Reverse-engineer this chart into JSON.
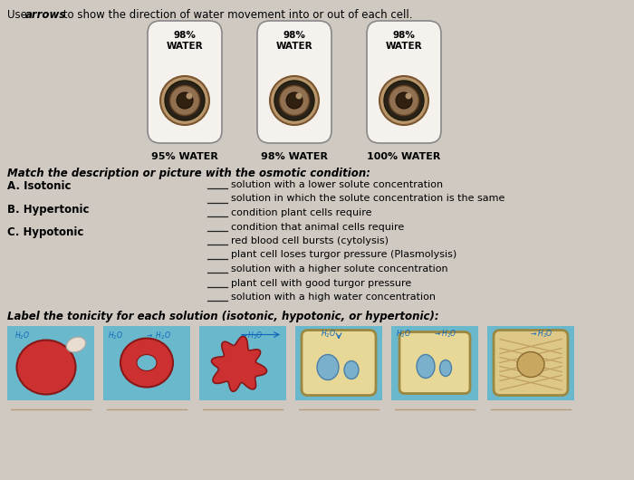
{
  "bg_color": "#cfc9c2",
  "cell_top_labels": [
    "98%\nWATER",
    "98%\nWATER",
    "98%\nWATER"
  ],
  "cell_bottom_labels": [
    "95% WATER",
    "98% WATER",
    "100% WATER"
  ],
  "match_descriptions": [
    "solution with a lower solute concentration",
    "solution in which the solute concentration is the same",
    "condition plant cells require",
    "condition that animal cells require",
    "red blood cell bursts (cytolysis)",
    "plant cell loses turgor pressure (Plasmolysis)",
    "solution with a higher solute concentration",
    "plant cell with good turgor pressure",
    "solution with a high water concentration"
  ],
  "line_color": "#b89a7a",
  "cell_box_color": "#6ab8cc"
}
